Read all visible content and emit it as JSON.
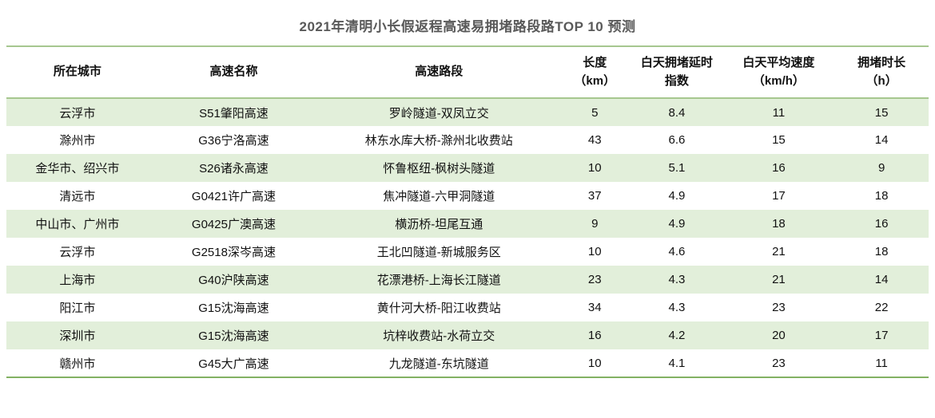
{
  "title": "2021年清明小长假返程高速易拥堵路段路TOP 10 预测",
  "colors": {
    "title_text": "#595959",
    "cell_text": "#111111",
    "banded_row_green": "#e2efda",
    "rule_green": "#a6c78f",
    "bottom_rule_green": "#82b163",
    "background": "#ffffff"
  },
  "chart_data": {
    "type": "table",
    "title": "2021年清明小长假返程高速易拥堵路段路TOP 10 预测",
    "columns": [
      "所在城市",
      "高速名称",
      "高速路段",
      "长度\n（km）",
      "白天拥堵延时\n指数",
      "白天平均速度\n（km/h）",
      "拥堵时长\n（h）"
    ],
    "column_keys": [
      "city",
      "highway_name",
      "highway_section",
      "length_km",
      "daytime_congestion_delay_index",
      "daytime_avg_speed_kmh",
      "congestion_duration_h"
    ],
    "rows": [
      [
        "云浮市",
        "S51肇阳高速",
        "罗岭隧道-双凤立交",
        5,
        8.4,
        11,
        15
      ],
      [
        "滁州市",
        "G36宁洛高速",
        "林东水库大桥-滁州北收费站",
        43,
        6.6,
        15,
        14
      ],
      [
        "金华市、绍兴市",
        "S26诸永高速",
        "怀鲁枢纽-枫树头隧道",
        10,
        5.1,
        16,
        9
      ],
      [
        "清远市",
        "G0421许广高速",
        "焦冲隧道-六甲洞隧道",
        37,
        4.9,
        17,
        18
      ],
      [
        "中山市、广州市",
        "G0425广澳高速",
        "横沥桥-坦尾互通",
        9,
        4.9,
        18,
        16
      ],
      [
        "云浮市",
        "G2518深岑高速",
        "王北凹隧道-新城服务区",
        10,
        4.6,
        21,
        18
      ],
      [
        "上海市",
        "G40沪陕高速",
        "花漂港桥-上海长江隧道",
        23,
        4.3,
        21,
        14
      ],
      [
        "阳江市",
        "G15沈海高速",
        "黄什河大桥-阳江收费站",
        34,
        4.3,
        23,
        22
      ],
      [
        "深圳市",
        "G15沈海高速",
        "坑梓收费站-水荷立交",
        16,
        4.2,
        20,
        17
      ],
      [
        "赣州市",
        "G45大广高速",
        "九龙隧道-东坑隧道",
        10,
        4.1,
        23,
        11
      ]
    ],
    "layout": {
      "banded_rows": true,
      "banded_color_rows": "odd (1st, 3rd, 5th, 7th, 9th)",
      "grid": "horizontal rules only: top, below header, bottom"
    }
  }
}
